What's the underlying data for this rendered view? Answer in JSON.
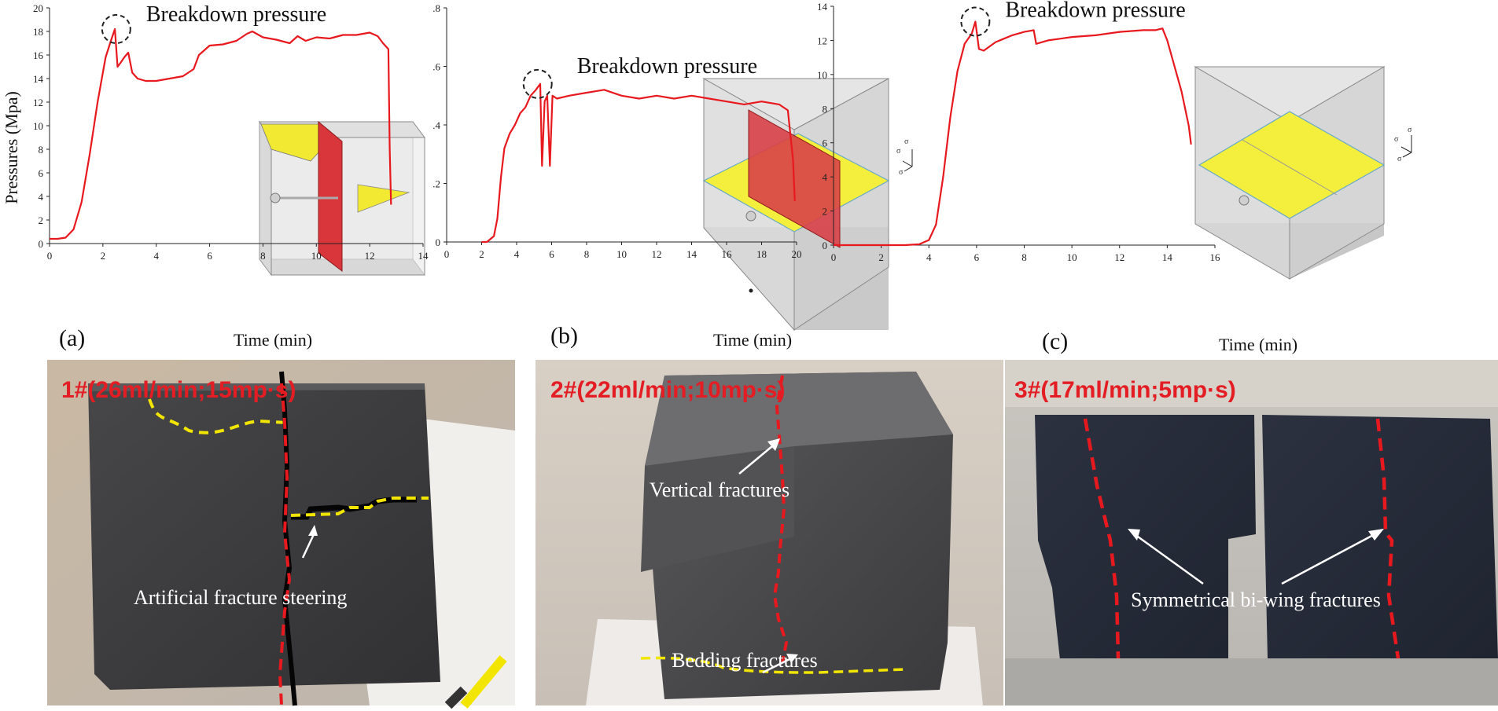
{
  "chart_data": [
    {
      "type": "line",
      "panel_label": "(a)",
      "xlabel": "Time (min)",
      "ylabel": "Pressures (Mpa)",
      "xlim": [
        0,
        14
      ],
      "ylim": [
        0,
        20
      ],
      "xticks": [
        0,
        2,
        4,
        6,
        8,
        10,
        12,
        14
      ],
      "yticks": [
        0,
        2,
        4,
        6,
        8,
        10,
        12,
        14,
        16,
        18,
        20
      ],
      "ytick_labels": [
        "0",
        "2",
        "4",
        "6",
        "8",
        "10",
        "12",
        "14",
        "16",
        "18",
        "20"
      ],
      "annotation": {
        "text": "Breakdown pressure",
        "x": 2.5,
        "y": 18.2
      },
      "series": [
        {
          "name": "Pressure",
          "color": "#e8191e",
          "x": [
            0,
            0.3,
            0.6,
            0.9,
            1.2,
            1.5,
            1.8,
            2.1,
            2.3,
            2.45,
            2.55,
            2.65,
            2.8,
            2.95,
            3.1,
            3.3,
            3.6,
            4.0,
            4.5,
            5.0,
            5.4,
            5.6,
            6.0,
            6.5,
            7.0,
            7.4,
            7.6,
            8.0,
            8.5,
            9.0,
            9.3,
            9.6,
            10.0,
            10.5,
            11.0,
            11.5,
            12.0,
            12.3,
            12.5,
            12.7,
            12.75,
            12.8
          ],
          "y": [
            0.4,
            0.4,
            0.5,
            1.2,
            3.5,
            7.5,
            12.0,
            15.8,
            17.2,
            18.2,
            15.0,
            15.3,
            15.8,
            16.2,
            14.5,
            14.0,
            13.8,
            13.8,
            14.0,
            14.2,
            14.8,
            16.0,
            16.8,
            16.9,
            17.2,
            17.8,
            18.0,
            17.5,
            17.3,
            17.0,
            17.6,
            17.2,
            17.5,
            17.4,
            17.7,
            17.7,
            17.9,
            17.6,
            17.0,
            16.5,
            8.0,
            3.3
          ]
        }
      ]
    },
    {
      "type": "line",
      "panel_label": "(b)",
      "xlabel": "Time (min)",
      "ylabel": "",
      "xlim": [
        0,
        20
      ],
      "ylim": [
        0,
        0.8
      ],
      "xticks": [
        0,
        2,
        4,
        6,
        8,
        10,
        12,
        14,
        16,
        18,
        20
      ],
      "yticks": [
        0,
        0.2,
        0.4,
        0.6,
        0.8
      ],
      "ytick_labels": [
        "0",
        ".2",
        ".4",
        ".6",
        ".8"
      ],
      "annotation": {
        "text": "Breakdown pressure",
        "x": 5.2,
        "y": 0.54
      },
      "series": [
        {
          "name": "Pressure",
          "color": "#e8191e",
          "x": [
            2.0,
            2.3,
            2.7,
            2.9,
            3.1,
            3.3,
            3.6,
            3.9,
            4.2,
            4.5,
            4.8,
            5.1,
            5.35,
            5.45,
            5.6,
            5.75,
            5.9,
            6.05,
            6.3,
            7.0,
            8.0,
            9.0,
            10.0,
            11.0,
            12.0,
            13.0,
            14.0,
            15.0,
            16.0,
            17.0,
            18.0,
            19.0,
            19.5,
            19.8,
            19.9
          ],
          "y": [
            0.0,
            0.0,
            0.02,
            0.08,
            0.22,
            0.32,
            0.37,
            0.4,
            0.44,
            0.46,
            0.5,
            0.52,
            0.54,
            0.26,
            0.48,
            0.5,
            0.26,
            0.5,
            0.49,
            0.5,
            0.51,
            0.52,
            0.5,
            0.49,
            0.5,
            0.49,
            0.5,
            0.49,
            0.48,
            0.47,
            0.48,
            0.47,
            0.45,
            0.28,
            0.14
          ]
        }
      ]
    },
    {
      "type": "line",
      "panel_label": "(c)",
      "xlabel": "Time (min)",
      "ylabel": "",
      "xlim": [
        0,
        16
      ],
      "ylim": [
        0,
        14
      ],
      "xticks": [
        0,
        2,
        4,
        6,
        8,
        10,
        12,
        14,
        16
      ],
      "yticks": [
        0,
        2,
        4,
        6,
        8,
        10,
        12,
        14
      ],
      "ytick_labels": [
        "0",
        "2",
        "4",
        "6",
        "8",
        "10",
        "12",
        "14"
      ],
      "annotation": {
        "text": "Breakdown pressure",
        "x": 5.95,
        "y": 13.1
      },
      "series": [
        {
          "name": "Pressure",
          "color": "#e8191e",
          "x": [
            0,
            2.0,
            3.0,
            3.6,
            4.0,
            4.3,
            4.6,
            4.9,
            5.2,
            5.5,
            5.8,
            5.95,
            6.1,
            6.3,
            6.8,
            7.5,
            8.0,
            8.4,
            8.5,
            9.0,
            9.5,
            10.0,
            11.0,
            12.0,
            13.0,
            13.5,
            13.8,
            14.0,
            14.3,
            14.6,
            14.9,
            15.0
          ],
          "y": [
            0,
            0,
            0,
            0.05,
            0.3,
            1.2,
            4.0,
            7.5,
            10.2,
            11.8,
            12.4,
            13.1,
            11.5,
            11.4,
            11.9,
            12.3,
            12.5,
            12.6,
            11.8,
            12.0,
            12.1,
            12.2,
            12.3,
            12.5,
            12.6,
            12.6,
            12.7,
            12.0,
            10.5,
            9.0,
            7.0,
            5.9
          ]
        }
      ]
    }
  ],
  "photos": [
    {
      "title": "1#(26ml/min;15mp·s)",
      "labels": [
        "Artificial fracture steering"
      ]
    },
    {
      "title": "2#(22ml/min;10mp·s)",
      "labels": [
        "Vertical fractures",
        "Bedding fractures"
      ]
    },
    {
      "title": "3#(17ml/min;5mp·s)",
      "labels": [
        "Symmetrical bi-wing fractures"
      ]
    }
  ],
  "colors": {
    "curve": "#e8191e",
    "fracture_red": "#e8191e",
    "bedding_yellow": "#f2e600",
    "title_red": "#e31d23",
    "rock": "#3d3d3f",
    "background_photo": "#cbbfb0"
  },
  "stress_axes": [
    "σv",
    "σH",
    "σh"
  ]
}
